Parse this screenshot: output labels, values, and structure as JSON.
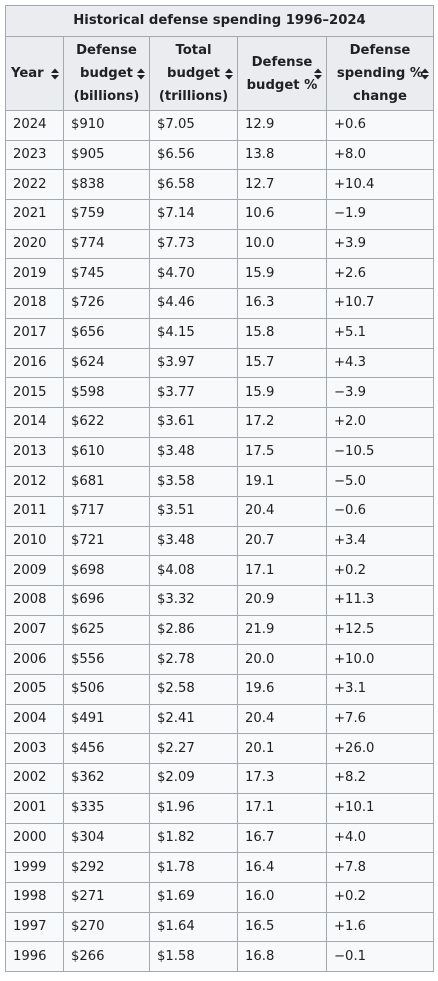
{
  "table": {
    "caption": "Historical defense spending 1996–2024",
    "columns": [
      {
        "lines": [
          "Year"
        ]
      },
      {
        "lines": [
          "Defense",
          "budget",
          "(billions)"
        ]
      },
      {
        "lines": [
          "Total",
          "budget",
          "(trillions)"
        ]
      },
      {
        "lines": [
          "Defense",
          "budget %"
        ]
      },
      {
        "lines": [
          "Defense",
          "spending %",
          "change"
        ]
      }
    ],
    "sort_icon": "sort-up-down-icon",
    "rows": [
      [
        "2024",
        "$910",
        "$7.05",
        "12.9",
        "+0.6"
      ],
      [
        "2023",
        "$905",
        "$6.56",
        "13.8",
        "+8.0"
      ],
      [
        "2022",
        "$838",
        "$6.58",
        "12.7",
        "+10.4"
      ],
      [
        "2021",
        "$759",
        "$7.14",
        "10.6",
        "−1.9"
      ],
      [
        "2020",
        "$774",
        "$7.73",
        "10.0",
        "+3.9"
      ],
      [
        "2019",
        "$745",
        "$4.70",
        "15.9",
        "+2.6"
      ],
      [
        "2018",
        "$726",
        "$4.46",
        "16.3",
        "+10.7"
      ],
      [
        "2017",
        "$656",
        "$4.15",
        "15.8",
        "+5.1"
      ],
      [
        "2016",
        "$624",
        "$3.97",
        "15.7",
        "+4.3"
      ],
      [
        "2015",
        "$598",
        "$3.77",
        "15.9",
        "−3.9"
      ],
      [
        "2014",
        "$622",
        "$3.61",
        "17.2",
        "+2.0"
      ],
      [
        "2013",
        "$610",
        "$3.48",
        "17.5",
        "−10.5"
      ],
      [
        "2012",
        "$681",
        "$3.58",
        "19.1",
        "−5.0"
      ],
      [
        "2011",
        "$717",
        "$3.51",
        "20.4",
        "−0.6"
      ],
      [
        "2010",
        "$721",
        "$3.48",
        "20.7",
        "+3.4"
      ],
      [
        "2009",
        "$698",
        "$4.08",
        "17.1",
        "+0.2"
      ],
      [
        "2008",
        "$696",
        "$3.32",
        "20.9",
        "+11.3"
      ],
      [
        "2007",
        "$625",
        "$2.86",
        "21.9",
        "+12.5"
      ],
      [
        "2006",
        "$556",
        "$2.78",
        "20.0",
        "+10.0"
      ],
      [
        "2005",
        "$506",
        "$2.58",
        "19.6",
        "+3.1"
      ],
      [
        "2004",
        "$491",
        "$2.41",
        "20.4",
        "+7.6"
      ],
      [
        "2003",
        "$456",
        "$2.27",
        "20.1",
        "+26.0"
      ],
      [
        "2002",
        "$362",
        "$2.09",
        "17.3",
        "+8.2"
      ],
      [
        "2001",
        "$335",
        "$1.96",
        "17.1",
        "+10.1"
      ],
      [
        "2000",
        "$304",
        "$1.82",
        "16.7",
        "+4.0"
      ],
      [
        "1999",
        "$292",
        "$1.78",
        "16.4",
        "+7.8"
      ],
      [
        "1998",
        "$271",
        "$1.69",
        "16.0",
        "+0.2"
      ],
      [
        "1997",
        "$270",
        "$1.64",
        "16.5",
        "+1.6"
      ],
      [
        "1996",
        "$266",
        "$1.58",
        "16.8",
        "−0.1"
      ]
    ]
  }
}
